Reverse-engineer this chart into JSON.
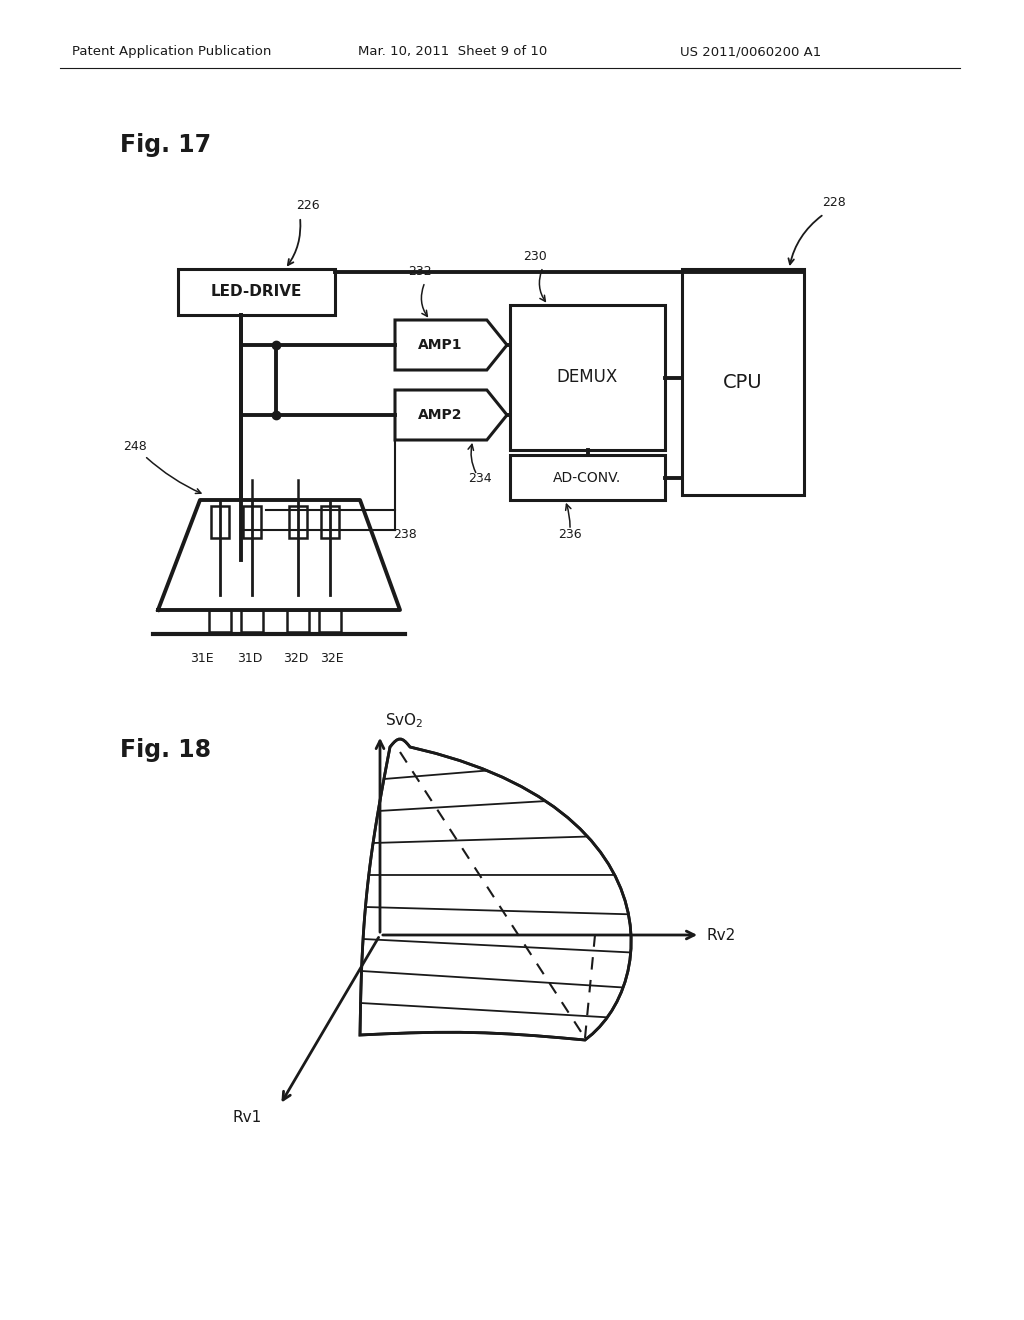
{
  "header_left": "Patent Application Publication",
  "header_mid": "Mar. 10, 2011  Sheet 9 of 10",
  "header_right": "US 2011/0060200 A1",
  "fig17_label": "Fig. 17",
  "fig18_label": "Fig. 18",
  "bg_color": "#ffffff",
  "line_color": "#1a1a1a",
  "text_color": "#1a1a1a"
}
